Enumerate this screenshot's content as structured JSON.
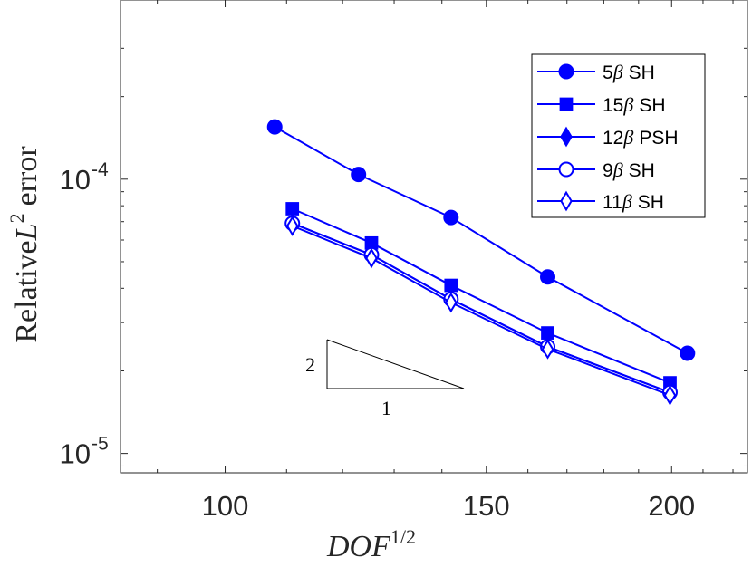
{
  "chart_data": {
    "type": "line",
    "xscale": "log",
    "yscale": "log",
    "xlim": [
      85,
      225
    ],
    "ylim": [
      8.5e-06,
      0.00045
    ],
    "xlabel": "DOF",
    "xlabel_sup": "1/2",
    "ylabel": "Relative",
    "ylabel_var": "L",
    "ylabel_sup": "2",
    "ylabel_tail": "error",
    "x_ticks": [
      {
        "value": 100,
        "label": "100"
      },
      {
        "value": 150,
        "label": "150"
      },
      {
        "value": 200,
        "label": "200"
      }
    ],
    "y_ticks": [
      {
        "value": 0.0001,
        "base": "10",
        "exp": "-4"
      },
      {
        "value": 1e-05,
        "base": "10",
        "exp": "-5"
      }
    ],
    "color": "#0000ff",
    "series": [
      {
        "name": "5",
        "suffix": "SH",
        "marker": "circle",
        "filled": true,
        "x": [
          108,
          123,
          142,
          165,
          205
        ],
        "y": [
          0.000155,
          0.000104,
          7.25e-05,
          4.4e-05,
          2.32e-05
        ]
      },
      {
        "name": "15",
        "suffix": "SH",
        "marker": "square",
        "filled": true,
        "x": [
          111,
          125.5,
          142,
          165,
          199.5
        ],
        "y": [
          7.8e-05,
          5.85e-05,
          4.1e-05,
          2.75e-05,
          1.81e-05
        ]
      },
      {
        "name": "12",
        "suffix": "PSH",
        "marker": "diamond",
        "filled": true,
        "x": [
          111,
          125.5,
          142,
          165,
          199.5
        ],
        "y": [
          6.9e-05,
          5.3e-05,
          3.65e-05,
          2.45e-05,
          1.67e-05
        ]
      },
      {
        "name": "9",
        "suffix": "SH",
        "marker": "circle",
        "filled": false,
        "x": [
          111,
          125.5,
          142,
          165,
          199.5
        ],
        "y": [
          6.9e-05,
          5.3e-05,
          3.65e-05,
          2.45e-05,
          1.67e-05
        ]
      },
      {
        "name": "11",
        "suffix": "SH",
        "marker": "diamond",
        "filled": false,
        "x": [
          111,
          125.5,
          142,
          165,
          199.5
        ],
        "y": [
          6.75e-05,
          5.15e-05,
          3.55e-05,
          2.4e-05,
          1.63e-05
        ]
      }
    ],
    "legend_beta": "β",
    "legend_position": "top-right",
    "slope_triangle": {
      "rise_label": "2",
      "run_label": "1"
    }
  }
}
